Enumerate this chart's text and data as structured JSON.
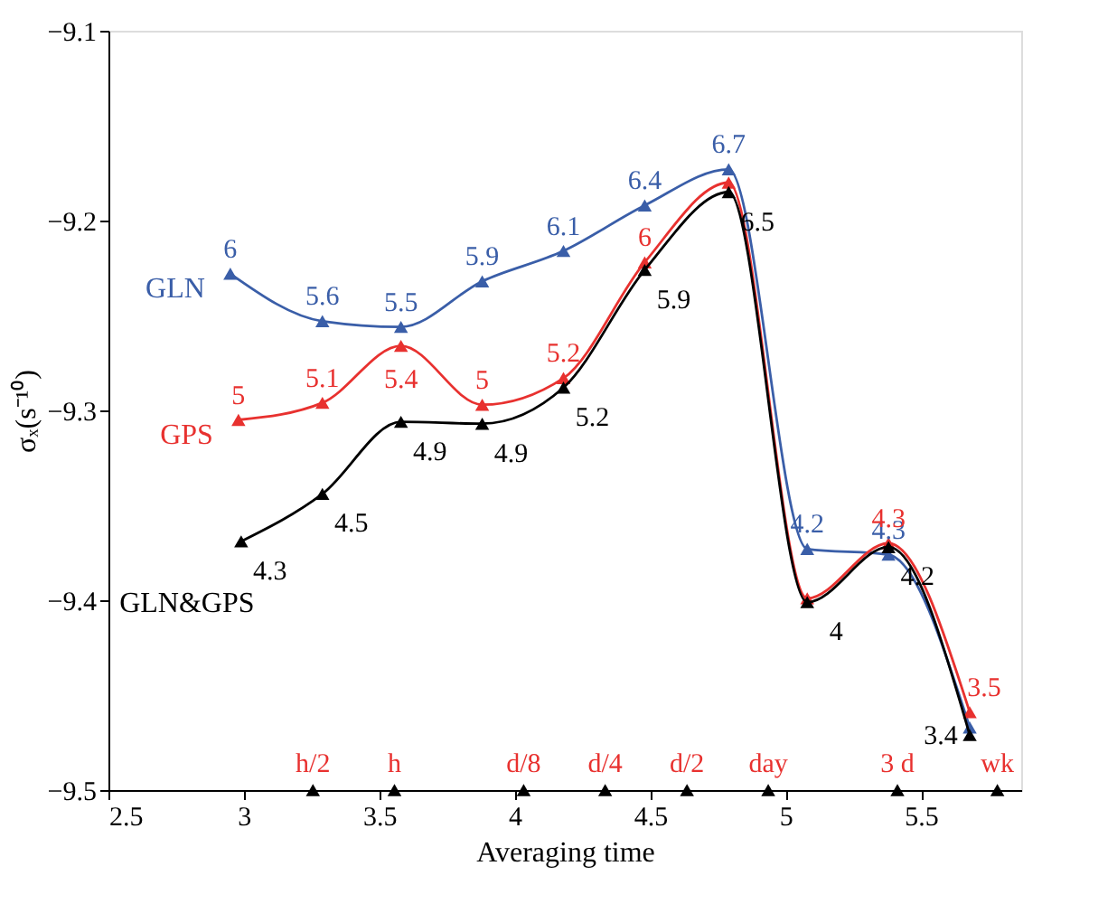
{
  "chart_data": {
    "type": "line",
    "xlabel": "Averaging time",
    "ylabel": "σₓ(s⁻¹⁰)",
    "xlim": [
      2.5,
      5.87
    ],
    "xticks": [
      2.5,
      3,
      3.5,
      4,
      4.5,
      5,
      5.5
    ],
    "ylim": [
      -9.5,
      -9.1
    ],
    "yticks": [
      -9.5,
      -9.4,
      -9.3,
      -9.2,
      -9.1
    ],
    "grid": false,
    "marker": "triangle",
    "line_style": "solid",
    "series": [
      {
        "name": "GLN",
        "color": "#3a5ea8",
        "x": [
          2.95,
          3.29,
          3.58,
          3.88,
          4.18,
          4.48,
          4.79,
          5.08,
          5.38,
          5.68
        ],
        "values": [
          -9.228,
          -9.253,
          -9.256,
          -9.232,
          -9.216,
          -9.192,
          -9.173,
          -9.373,
          -9.376,
          -9.467
        ]
      },
      {
        "name": "GPS",
        "color": "#e8312f",
        "x": [
          2.98,
          3.29,
          3.58,
          3.88,
          4.18,
          4.48,
          4.79,
          5.08,
          5.38,
          5.68
        ],
        "values": [
          -9.305,
          -9.296,
          -9.266,
          -9.297,
          -9.283,
          -9.222,
          -9.18,
          -9.399,
          -9.37,
          -9.459
        ]
      },
      {
        "name": "GLN&GPS",
        "color": "#000000",
        "x": [
          2.99,
          3.29,
          3.58,
          3.88,
          4.18,
          4.48,
          4.79,
          5.08,
          5.38,
          5.68
        ],
        "values": [
          -9.369,
          -9.344,
          -9.306,
          -9.307,
          -9.288,
          -9.226,
          -9.185,
          -9.401,
          -9.372,
          -9.471
        ]
      },
      {
        "type": "scatter",
        "color": "#000000",
        "x": [
          3.255,
          3.556,
          4.033,
          4.334,
          4.636,
          4.936,
          5.413,
          5.782
        ],
        "values": [
          -9.5,
          -9.5,
          -9.5,
          -9.5,
          -9.5,
          -9.5,
          -9.5,
          -9.5
        ]
      }
    ],
    "annotations": [
      {
        "text": "6",
        "x": 2.95,
        "y": -9.228
      },
      {
        "text": "5.6",
        "x": 3.29,
        "y": -9.253
      },
      {
        "text": "5.5",
        "x": 3.58,
        "y": -9.256
      },
      {
        "text": "5.9",
        "x": 3.88,
        "y": -9.232
      },
      {
        "text": "6.1",
        "x": 4.18,
        "y": -9.216
      },
      {
        "text": "6.4",
        "x": 4.48,
        "y": -9.192
      },
      {
        "text": "6.7",
        "x": 4.79,
        "y": -9.173
      },
      {
        "text": "4.2",
        "x": 5.08,
        "y": -9.373
      },
      {
        "text": "4.3",
        "x": 5.38,
        "y": -9.376
      },
      {
        "text": "5",
        "x": 2.98,
        "y": -9.305
      },
      {
        "text": "5.1",
        "x": 3.29,
        "y": -9.296
      },
      {
        "text": "5.4",
        "x": 3.58,
        "y": -9.266
      },
      {
        "text": "5",
        "x": 3.88,
        "y": -9.297
      },
      {
        "text": "5.2",
        "x": 4.18,
        "y": -9.283
      },
      {
        "text": "6",
        "x": 4.48,
        "y": -9.222
      },
      {
        "text": "4.3",
        "x": 5.38,
        "y": -9.37
      },
      {
        "text": "3.5",
        "x": 5.68,
        "y": -9.459
      },
      {
        "text": "4.3",
        "x": 2.99,
        "y": -9.369
      },
      {
        "text": "4.5",
        "x": 3.29,
        "y": -9.344
      },
      {
        "text": "4.9",
        "x": 3.58,
        "y": -9.306
      },
      {
        "text": "4.9",
        "x": 3.88,
        "y": -9.307
      },
      {
        "text": "5.2",
        "x": 4.18,
        "y": -9.288
      },
      {
        "text": "5.9",
        "x": 4.48,
        "y": -9.226
      },
      {
        "text": "6.5",
        "x": 4.79,
        "y": -9.185
      },
      {
        "text": "4",
        "x": 5.08,
        "y": -9.401
      },
      {
        "text": "4.2",
        "x": 5.38,
        "y": -9.372
      },
      {
        "text": "3.4",
        "x": 5.68,
        "y": -9.471
      },
      {
        "text": "h/2",
        "x": 3.255,
        "y": -9.5
      },
      {
        "text": "h",
        "x": 3.556,
        "y": -9.5
      },
      {
        "text": "d/8",
        "x": 4.033,
        "y": -9.5
      },
      {
        "text": "d/4",
        "x": 4.334,
        "y": -9.5
      },
      {
        "text": "d/2",
        "x": 4.636,
        "y": -9.5
      },
      {
        "text": "day",
        "x": 4.936,
        "y": -9.5
      },
      {
        "text": "3 d",
        "x": 5.413,
        "y": -9.5
      },
      {
        "text": "wk",
        "x": 5.782,
        "y": -9.5
      }
    ]
  }
}
